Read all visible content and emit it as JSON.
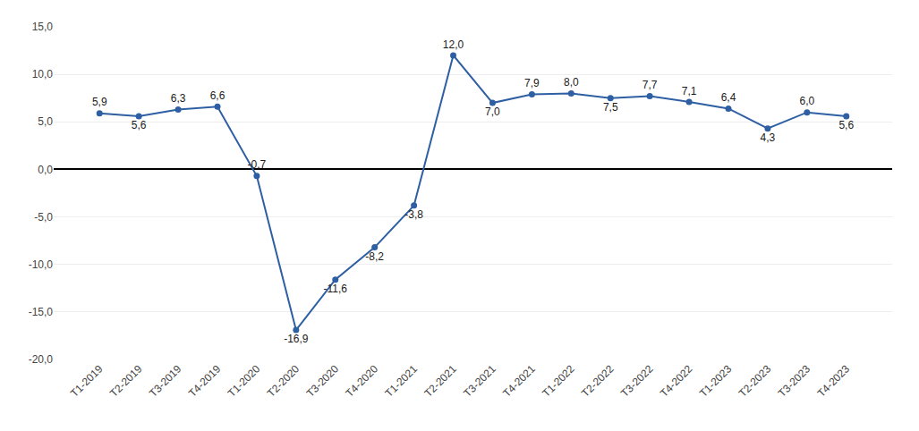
{
  "chart_data": {
    "type": "line",
    "categories": [
      "T1-2019",
      "T2-2019",
      "T3-2019",
      "T4-2019",
      "T1-2020",
      "T2-2020",
      "T3-2020",
      "T4-2020",
      "T1-2021",
      "T2-2021",
      "T3-2021",
      "T4-2021",
      "T1-2022",
      "T2-2022",
      "T3-2022",
      "T4-2022",
      "T1-2023",
      "T2-2023",
      "T3-2023",
      "T4-2023"
    ],
    "values": [
      5.9,
      5.6,
      6.3,
      6.6,
      -0.7,
      -16.9,
      -11.6,
      -8.2,
      -3.8,
      12.0,
      7.0,
      7.9,
      8.0,
      7.5,
      7.7,
      7.1,
      6.4,
      4.3,
      6.0,
      5.6
    ],
    "value_labels": [
      "5,9",
      "5,6",
      "6,3",
      "6,6",
      "-0,7",
      "-16,9",
      "-11,6",
      "-8,2",
      "-3,8",
      "12,0",
      "7,0",
      "7,9",
      "8,0",
      "7,5",
      "7,7",
      "7,1",
      "6,4",
      "4,3",
      "6,0",
      "5,6"
    ],
    "data_labels": true,
    "color": "#2E5FA3",
    "marker": "circle",
    "ylim": [
      -20,
      15
    ],
    "yticks": [
      {
        "value": -20,
        "label": "-20,0"
      },
      {
        "value": -15,
        "label": "-15,0"
      },
      {
        "value": -10,
        "label": "-10,0"
      },
      {
        "value": -5,
        "label": "-5,0"
      },
      {
        "value": 0,
        "label": "0,0"
      },
      {
        "value": 5,
        "label": "5,0"
      },
      {
        "value": 10,
        "label": "10,0"
      },
      {
        "value": 15,
        "label": "15,0"
      }
    ],
    "grid": true
  }
}
